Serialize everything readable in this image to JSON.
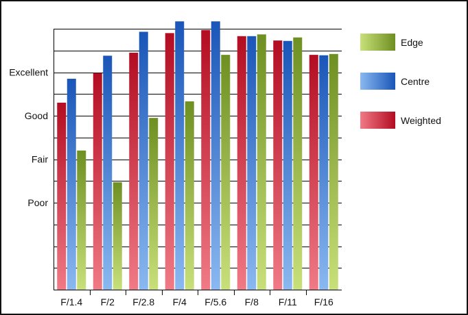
{
  "chart_data": {
    "type": "bar",
    "categories": [
      "F/1.4",
      "F/2",
      "F/2.8",
      "F/4",
      "F/5.6",
      "F/8",
      "F/11",
      "F/16"
    ],
    "y_tick_labels": [
      {
        "label": "Poor",
        "value": 1
      },
      {
        "label": "Fair",
        "value": 2
      },
      {
        "label": "Good",
        "value": 3
      },
      {
        "label": "Excellent",
        "value": 4
      }
    ],
    "ylim": [
      -1,
      5
    ],
    "grid": true,
    "legend_position": "right",
    "series": [
      {
        "name": "Weighted",
        "color": "#c8102e",
        "values": [
          3.3,
          3.98,
          4.45,
          4.9,
          4.97,
          4.83,
          4.73,
          4.4
        ]
      },
      {
        "name": "Centre",
        "color": "#1f5fbf",
        "values": [
          3.85,
          4.38,
          4.93,
          5.17,
          5.17,
          4.83,
          4.72,
          4.39
        ]
      },
      {
        "name": "Edge",
        "color": "#7a9a2a",
        "values": [
          2.2,
          1.47,
          2.95,
          3.33,
          4.4,
          4.87,
          4.8,
          4.42
        ]
      }
    ],
    "legend_order": [
      "Edge",
      "Centre",
      "Weighted"
    ]
  }
}
